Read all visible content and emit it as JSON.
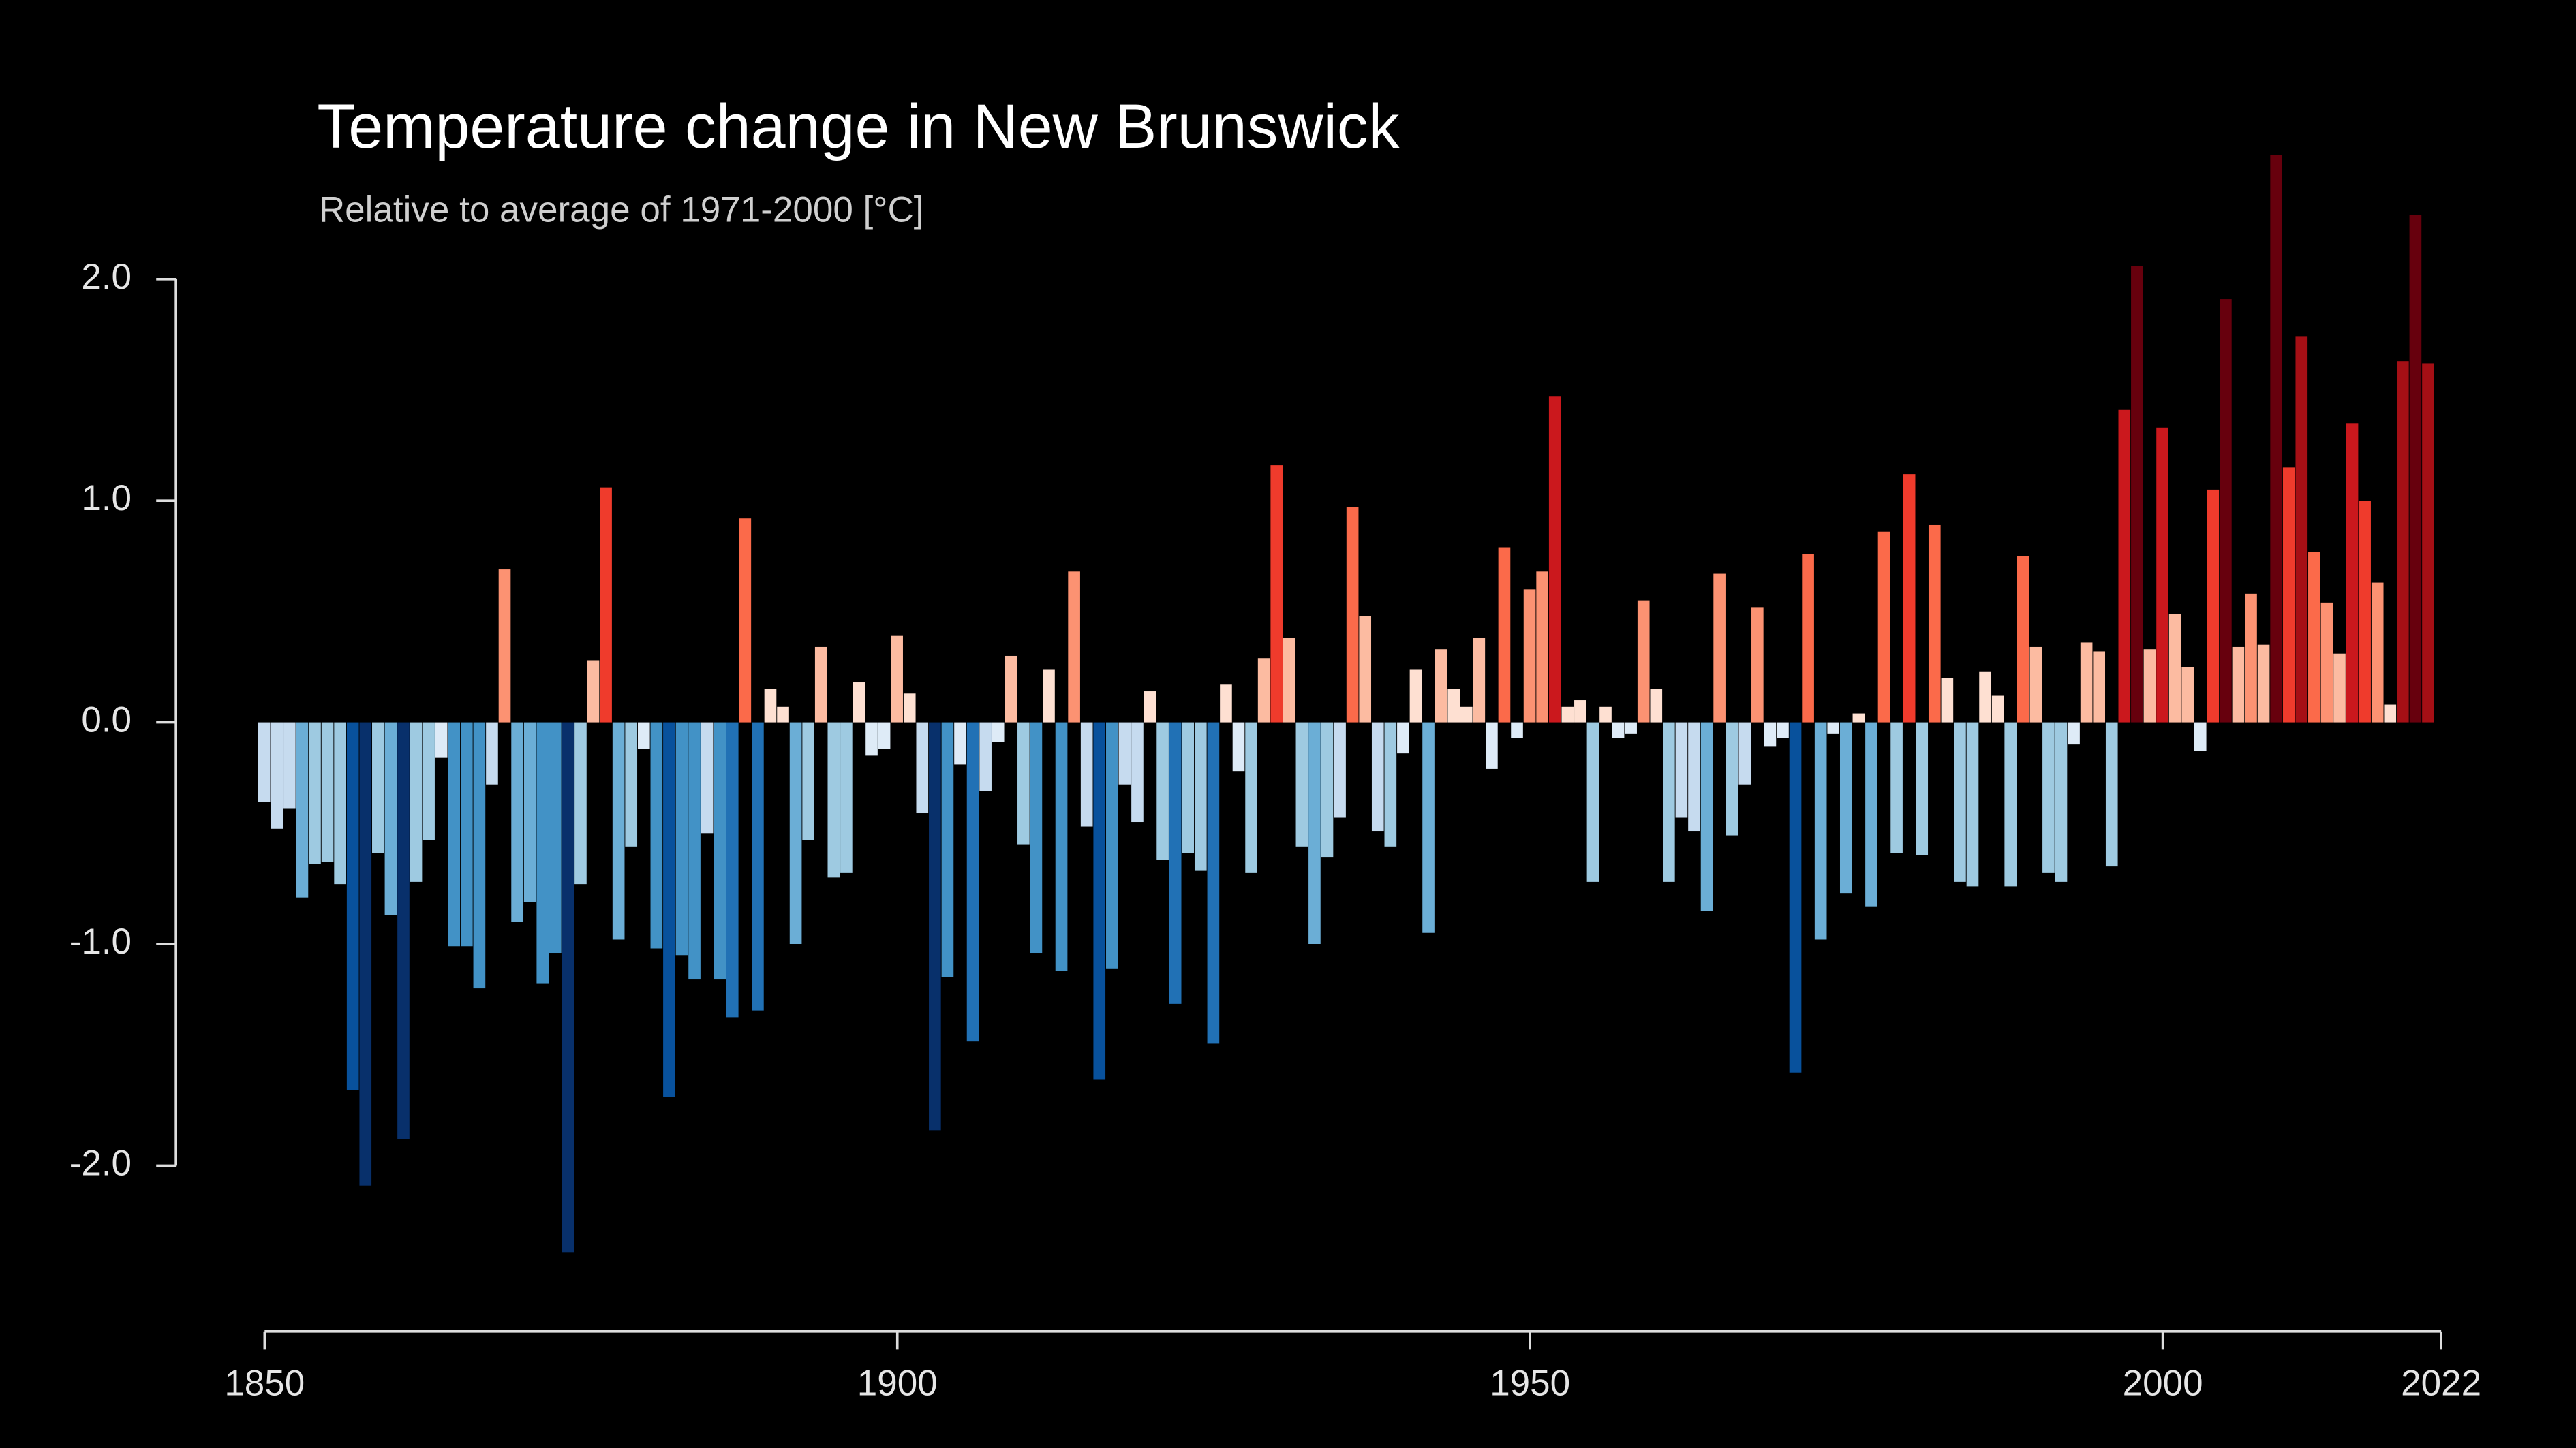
{
  "chart_data": {
    "type": "bar",
    "title": "Temperature change in New Brunswick",
    "subtitle": "Relative to average of 1971-2000  [°C]",
    "x": [
      1850,
      1851,
      1852,
      1853,
      1854,
      1855,
      1856,
      1857,
      1858,
      1859,
      1860,
      1861,
      1862,
      1863,
      1864,
      1865,
      1866,
      1867,
      1868,
      1869,
      1870,
      1871,
      1872,
      1873,
      1874,
      1875,
      1876,
      1877,
      1878,
      1879,
      1880,
      1881,
      1882,
      1883,
      1884,
      1885,
      1886,
      1887,
      1888,
      1889,
      1890,
      1891,
      1892,
      1893,
      1894,
      1895,
      1896,
      1897,
      1898,
      1899,
      1900,
      1901,
      1902,
      1903,
      1904,
      1905,
      1906,
      1907,
      1908,
      1909,
      1910,
      1911,
      1912,
      1913,
      1914,
      1915,
      1916,
      1917,
      1918,
      1919,
      1920,
      1921,
      1922,
      1923,
      1924,
      1925,
      1926,
      1927,
      1928,
      1929,
      1930,
      1931,
      1932,
      1933,
      1934,
      1935,
      1936,
      1937,
      1938,
      1939,
      1940,
      1941,
      1942,
      1943,
      1944,
      1945,
      1946,
      1947,
      1948,
      1949,
      1950,
      1951,
      1952,
      1953,
      1954,
      1955,
      1956,
      1957,
      1958,
      1959,
      1960,
      1961,
      1962,
      1963,
      1964,
      1965,
      1966,
      1967,
      1968,
      1969,
      1970,
      1971,
      1972,
      1973,
      1974,
      1975,
      1976,
      1977,
      1978,
      1979,
      1980,
      1981,
      1982,
      1983,
      1984,
      1985,
      1986,
      1987,
      1988,
      1989,
      1990,
      1991,
      1992,
      1993,
      1994,
      1995,
      1996,
      1997,
      1998,
      1999,
      2000,
      2001,
      2002,
      2003,
      2004,
      2005,
      2006,
      2007,
      2008,
      2009,
      2010,
      2011,
      2012,
      2013,
      2014,
      2015,
      2016,
      2017,
      2018,
      2019,
      2020,
      2021
    ],
    "values": [
      -0.36,
      -0.48,
      -0.39,
      -0.79,
      -0.64,
      -0.63,
      -0.73,
      -1.66,
      -2.09,
      -0.59,
      -0.87,
      -1.88,
      -0.72,
      -0.53,
      -0.16,
      -1.01,
      -1.01,
      -1.2,
      -0.28,
      0.69,
      -0.9,
      -0.81,
      -1.18,
      -1.04,
      -2.39,
      -0.73,
      0.28,
      1.06,
      -0.98,
      -0.56,
      -0.12,
      -1.02,
      -1.69,
      -1.05,
      -1.16,
      -0.5,
      -1.16,
      -1.33,
      0.92,
      -1.3,
      0.15,
      0.07,
      -1.0,
      -0.53,
      0.34,
      -0.7,
      -0.68,
      0.18,
      -0.15,
      -0.12,
      0.39,
      0.13,
      -0.41,
      -1.84,
      -1.15,
      -0.19,
      -1.44,
      -0.31,
      -0.09,
      0.3,
      -0.55,
      -1.04,
      0.24,
      -1.12,
      0.68,
      -0.47,
      -1.61,
      -1.11,
      -0.28,
      -0.45,
      0.14,
      -0.62,
      -1.27,
      -0.59,
      -0.67,
      -1.45,
      0.17,
      -0.22,
      -0.68,
      0.29,
      1.16,
      0.38,
      -0.56,
      -1.0,
      -0.61,
      -0.43,
      0.97,
      0.48,
      -0.49,
      -0.56,
      -0.14,
      0.24,
      -0.95,
      0.33,
      0.15,
      0.07,
      0.38,
      -0.21,
      0.79,
      -0.07,
      0.6,
      0.68,
      1.47,
      0.07,
      0.1,
      -0.72,
      0.07,
      -0.07,
      -0.05,
      0.55,
      0.15,
      -0.72,
      -0.43,
      -0.49,
      -0.85,
      0.67,
      -0.51,
      -0.28,
      0.52,
      -0.11,
      -0.07,
      -1.58,
      0.76,
      -0.98,
      -0.05,
      -0.77,
      0.04,
      -0.83,
      0.86,
      -0.59,
      1.12,
      -0.6,
      0.89,
      0.2,
      -0.72,
      -0.74,
      0.23,
      0.12,
      -0.74,
      0.75,
      0.34,
      -0.68,
      -0.72,
      -0.1,
      0.36,
      0.32,
      -0.65,
      1.41,
      2.06,
      0.33,
      1.33,
      0.49,
      0.25,
      -0.13,
      1.05,
      1.91,
      0.34,
      0.58,
      0.35,
      2.56,
      1.15,
      1.74,
      0.77,
      0.54,
      0.31,
      1.35,
      1.0,
      0.63,
      0.08,
      1.63,
      2.29,
      1.62
    ],
    "colors": [
      "#08306b",
      "#08519c",
      "#2171b5",
      "#4292c6",
      "#6baed6",
      "#9ecae1",
      "#c6dbef",
      "#deebf7",
      "#fee0d2",
      "#fcbba1",
      "#fc9272",
      "#fb6a4a",
      "#ef3b2c",
      "#cb181d",
      "#a50f15",
      "#67000d"
    ],
    "clim": [
      -2,
      2
    ],
    "xlim": [
      1850,
      2022
    ],
    "xticks": [
      1850,
      1900,
      1950,
      2000,
      2022
    ],
    "ylim": [
      -2.5,
      2.5
    ],
    "yticks": [
      {
        "value": 2,
        "label": "2.0"
      },
      {
        "value": 1,
        "label": "1.0"
      },
      {
        "value": 0,
        "label": "0.0"
      },
      {
        "value": -1,
        "label": "-1.0"
      },
      {
        "value": -2,
        "label": "-2.0"
      }
    ]
  }
}
